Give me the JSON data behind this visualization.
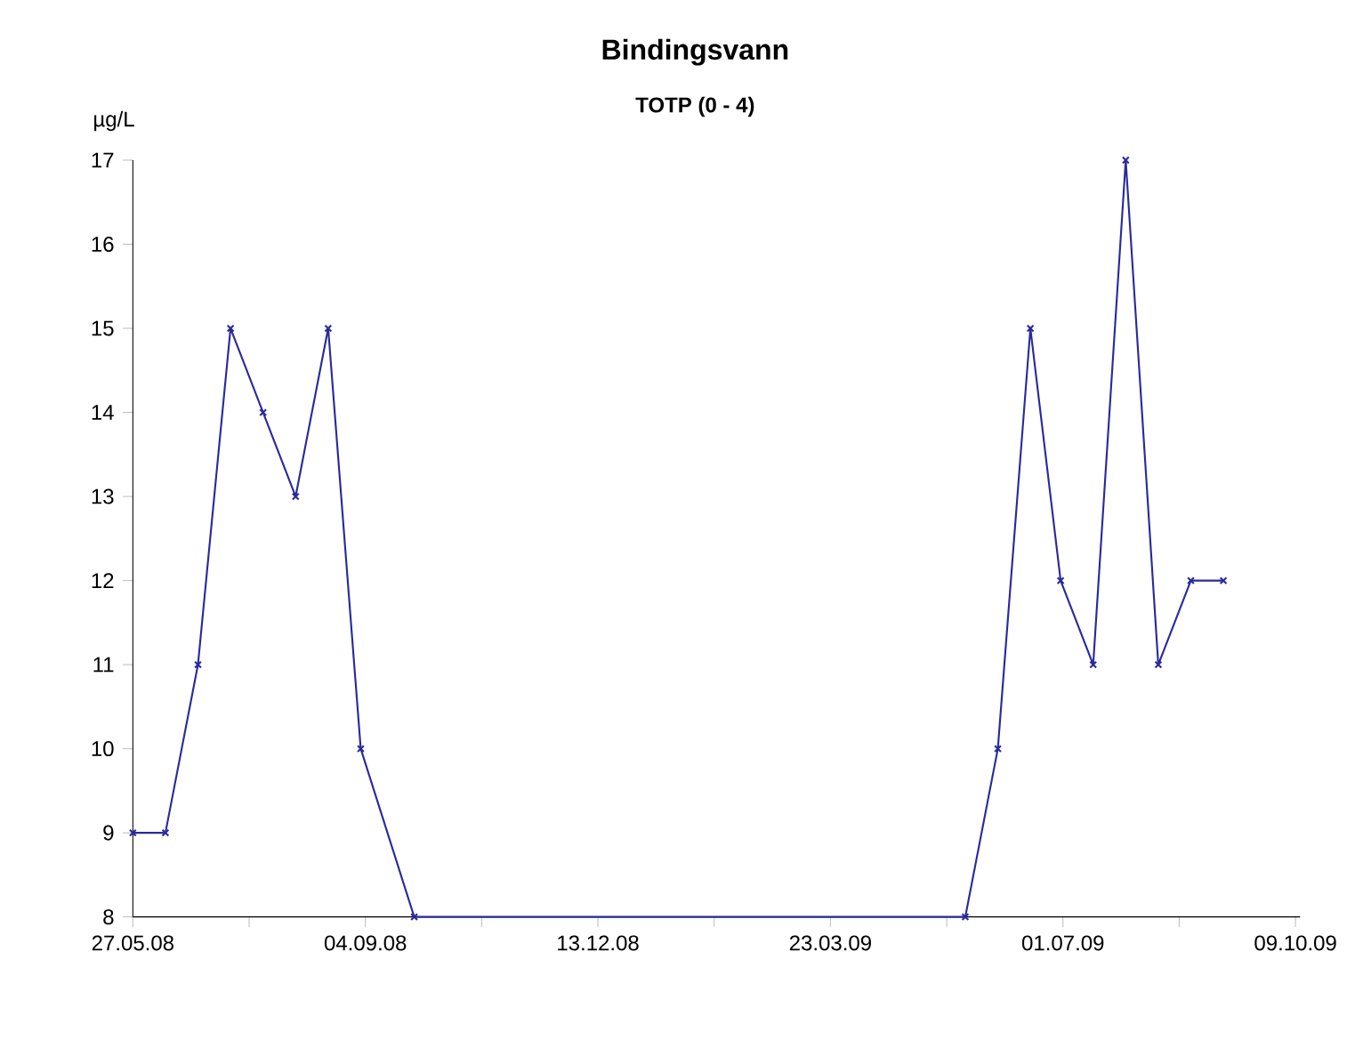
{
  "chart_data": {
    "type": "line",
    "title": "Bindingsvann",
    "subtitle": "TOTP (0 - 4)",
    "ylabel": "µg/L",
    "x": [
      "2008-05-27",
      "2008-06-10",
      "2008-06-24",
      "2008-07-08",
      "2008-07-22",
      "2008-08-05",
      "2008-08-19",
      "2008-09-02",
      "2008-09-25",
      "2009-05-20",
      "2009-06-03",
      "2009-06-17",
      "2009-06-30",
      "2009-07-14",
      "2009-07-28",
      "2009-08-11",
      "2009-08-25",
      "2009-09-08"
    ],
    "series": [
      {
        "color": "#2a2a9c",
        "values": [
          9,
          9,
          11,
          15,
          14,
          13,
          15,
          10,
          8,
          8,
          10,
          15,
          12,
          11,
          17,
          11,
          12,
          12
        ]
      }
    ],
    "xlim": [
      "2008-05-27",
      "2009-10-11"
    ],
    "xticks": [
      {
        "value": "2008-05-27",
        "label": "27.05.08"
      },
      {
        "value": "2008-07-16",
        "label": null
      },
      {
        "value": "2008-09-04",
        "label": "04.09.08"
      },
      {
        "value": "2008-10-24",
        "label": null
      },
      {
        "value": "2008-12-13",
        "label": "13.12.08"
      },
      {
        "value": "2009-02-01",
        "label": null
      },
      {
        "value": "2009-03-23",
        "label": "23.03.09"
      },
      {
        "value": "2009-05-12",
        "label": null
      },
      {
        "value": "2009-07-01",
        "label": "01.07.09"
      },
      {
        "value": "2009-08-20",
        "label": null
      },
      {
        "value": "2009-10-09",
        "label": "09.10.09"
      }
    ],
    "ylim": [
      8,
      17
    ],
    "yticks": [
      8,
      9,
      10,
      11,
      12,
      13,
      14,
      15,
      16,
      17
    ],
    "grid": false,
    "marker": "cross",
    "line_style": "solid"
  }
}
